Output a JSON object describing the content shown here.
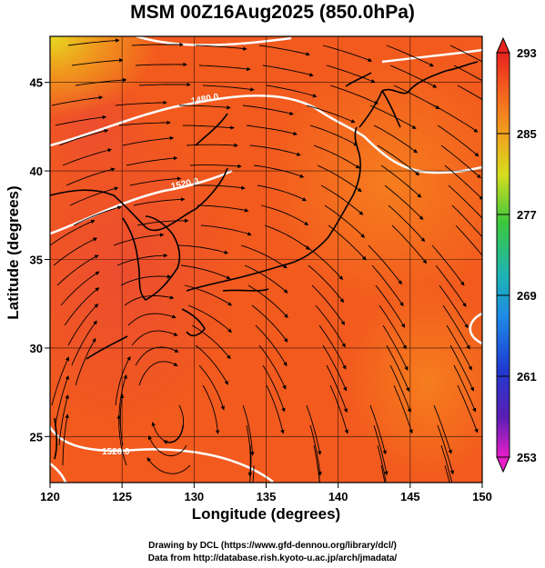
{
  "title": "MSM 00Z16Aug2025 (850.0hPa)",
  "xlabel": "Longitude (degrees)",
  "ylabel": "Latitude  (degrees)",
  "x_ticks": [
    "120",
    "125",
    "130",
    "135",
    "140",
    "145",
    "150"
  ],
  "y_ticks": [
    "25",
    "30",
    "35",
    "40",
    "45"
  ],
  "colorbar_ticks": [
    "293",
    "285",
    "277",
    "269",
    "261",
    "253"
  ],
  "contour_labels": [
    "1480.0",
    "1520.0",
    "1520.0"
  ],
  "credit_line1": "Drawing by DCL (https://www.gfd-dennou.org/library/dcl/)",
  "credit_line2": "Data from http://database.rish.kyoto-u.ac.jp/arch/jmadata/",
  "colors": {
    "field_main": "#f25a1e",
    "field_warm": "#ee4628",
    "field_cool": "#f5771e",
    "field_north": "#e9c21e",
    "contour": "#ffffff",
    "coast": "#000000"
  },
  "chart_data": {
    "type": "heatmap",
    "title": "MSM 00Z16Aug2025 (850.0hPa)",
    "xlabel": "Longitude (degrees)",
    "ylabel": "Latitude  (degrees)",
    "xlim": [
      120,
      150
    ],
    "ylim": [
      22.4,
      47.6
    ],
    "colorbar": {
      "min": 253,
      "max": 293,
      "ticks": [
        293,
        285,
        277,
        269,
        261,
        253
      ]
    },
    "contour_labels": [
      "1480.0",
      "1520.0",
      "1520.0"
    ]
  }
}
